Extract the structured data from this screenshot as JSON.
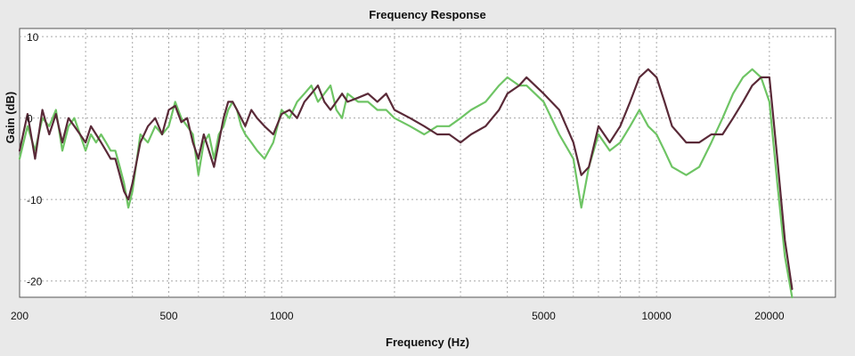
{
  "chart_data": {
    "type": "line",
    "title": "Frequency Response",
    "xlabel": "Frequency (Hz)",
    "ylabel": "Gain (dB)",
    "x_scale": "log",
    "xlim": [
      200,
      30000
    ],
    "ylim": [
      -22,
      11
    ],
    "grid": true,
    "x_ticks": [
      {
        "value": 200,
        "label": "200"
      },
      {
        "value": 500,
        "label": "500"
      },
      {
        "value": 1000,
        "label": "1000"
      },
      {
        "value": 5000,
        "label": "5000"
      },
      {
        "value": 10000,
        "label": "10000"
      },
      {
        "value": 20000,
        "label": "20000"
      }
    ],
    "y_ticks": [
      {
        "value": 10,
        "label": "10"
      },
      {
        "value": 0,
        "label": "0"
      },
      {
        "value": -10,
        "label": "-10"
      },
      {
        "value": -20,
        "label": "-20"
      }
    ],
    "series": [
      {
        "color": "#5a2a38",
        "x": [
          200,
          210,
          220,
          230,
          240,
          250,
          260,
          270,
          280,
          290,
          300,
          310,
          320,
          330,
          340,
          350,
          360,
          370,
          380,
          390,
          400,
          420,
          440,
          460,
          480,
          500,
          520,
          540,
          560,
          580,
          600,
          620,
          640,
          660,
          680,
          700,
          720,
          740,
          760,
          780,
          800,
          830,
          860,
          900,
          950,
          1000,
          1050,
          1100,
          1150,
          1200,
          1250,
          1300,
          1350,
          1400,
          1450,
          1500,
          1600,
          1700,
          1800,
          1900,
          2000,
          2200,
          2400,
          2600,
          2800,
          3000,
          3200,
          3500,
          3800,
          4000,
          4300,
          4500,
          5000,
          5500,
          6000,
          6300,
          6600,
          7000,
          7500,
          8000,
          8500,
          9000,
          9500,
          10000,
          10500,
          11000,
          12000,
          13000,
          14000,
          15000,
          16000,
          17000,
          18000,
          19000,
          20000,
          21000,
          22000,
          23000
        ],
        "y": [
          -4,
          0.5,
          -5,
          1,
          -2,
          0.5,
          -3,
          0,
          -1,
          -2,
          -3,
          -1,
          -2,
          -3,
          -4,
          -5,
          -5,
          -7,
          -9,
          -10,
          -8,
          -3,
          -1,
          0,
          -2,
          1,
          1.5,
          -0.5,
          0,
          -3,
          -5,
          -2,
          -4,
          -6,
          -3,
          0,
          2,
          2,
          1,
          0,
          -1,
          1,
          0,
          -1,
          -2,
          0.5,
          1,
          0,
          2,
          3,
          4,
          2,
          1,
          2,
          3,
          2,
          2.5,
          3,
          2,
          3,
          1,
          0,
          -1,
          -2,
          -2,
          -3,
          -2,
          -1,
          1,
          3,
          4,
          5,
          3,
          1,
          -3,
          -7,
          -6,
          -1,
          -3,
          -1,
          2,
          5,
          6,
          5,
          2,
          -1,
          -3,
          -3,
          -2,
          -2,
          0,
          2,
          4,
          5,
          5,
          -5,
          -15,
          -21
        ]
      },
      {
        "color": "#6ec464",
        "x": [
          200,
          210,
          220,
          230,
          240,
          250,
          260,
          270,
          280,
          290,
          300,
          310,
          320,
          330,
          340,
          350,
          360,
          370,
          380,
          390,
          400,
          420,
          440,
          460,
          480,
          500,
          520,
          540,
          560,
          580,
          600,
          620,
          640,
          660,
          680,
          700,
          720,
          740,
          760,
          780,
          800,
          830,
          860,
          900,
          950,
          1000,
          1050,
          1100,
          1150,
          1200,
          1250,
          1300,
          1350,
          1400,
          1450,
          1500,
          1600,
          1700,
          1800,
          1900,
          2000,
          2200,
          2400,
          2600,
          2800,
          3000,
          3200,
          3500,
          3800,
          4000,
          4300,
          4500,
          5000,
          5500,
          6000,
          6300,
          6600,
          7000,
          7500,
          8000,
          8500,
          9000,
          9500,
          10000,
          10500,
          11000,
          12000,
          13000,
          14000,
          15000,
          16000,
          17000,
          18000,
          19000,
          20000,
          21000,
          22000,
          23000
        ],
        "y": [
          -5,
          -1,
          -4,
          0,
          -1,
          1,
          -4,
          -1,
          0,
          -2,
          -4,
          -2,
          -3,
          -2,
          -3,
          -4,
          -4,
          -6,
          -8,
          -11,
          -9,
          -2,
          -3,
          -1,
          -2,
          -1,
          2,
          0,
          -1,
          -2,
          -7,
          -3,
          -2,
          -5,
          -2,
          -1,
          1,
          2,
          1,
          -1,
          -2,
          -3,
          -4,
          -5,
          -3,
          1,
          0,
          2,
          3,
          4,
          2,
          3,
          4,
          1,
          0,
          3,
          2,
          2,
          1,
          1,
          0,
          -1,
          -2,
          -1,
          -1,
          0,
          1,
          2,
          4,
          5,
          4,
          4,
          2,
          -2,
          -5,
          -11,
          -6,
          -2,
          -4,
          -3,
          -1,
          1,
          -1,
          -2,
          -4,
          -6,
          -7,
          -6,
          -3,
          0,
          3,
          5,
          6,
          5,
          2,
          -8,
          -17,
          -22
        ]
      }
    ]
  }
}
